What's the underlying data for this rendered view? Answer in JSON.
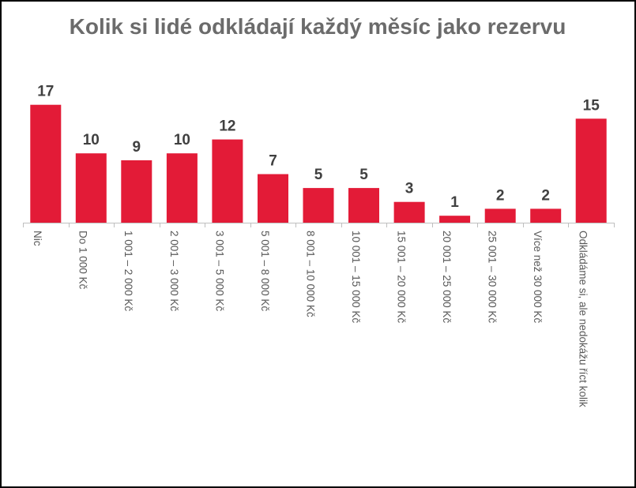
{
  "chart_data": {
    "type": "bar",
    "title": "Kolik si lidé odkládají každý měsíc jako rezervu",
    "xlabel": "",
    "ylabel": "",
    "ylim": [
      0,
      18
    ],
    "grid": false,
    "data_labels": true,
    "bar_color": "#e31b37",
    "categories": [
      "Nic",
      "Do 1 000 Kč",
      "1 001 – 2 000 Kč",
      "2 001 – 3 000 Kč",
      "3 001 – 5 000 Kč",
      "5 001 – 8 000 Kč",
      "8 001 – 10 000 Kč",
      "10 001 – 15 000 Kč",
      "15 001 – 20 000 Kč",
      "20 001 – 25 000 Kč",
      "25 001 – 30 000 Kč",
      "Více než 30 000 Kč",
      "Odkládáme si, ale nedokážu říct kolik"
    ],
    "values": [
      17,
      10,
      9,
      10,
      12,
      7,
      5,
      5,
      3,
      1,
      2,
      2,
      15
    ]
  }
}
